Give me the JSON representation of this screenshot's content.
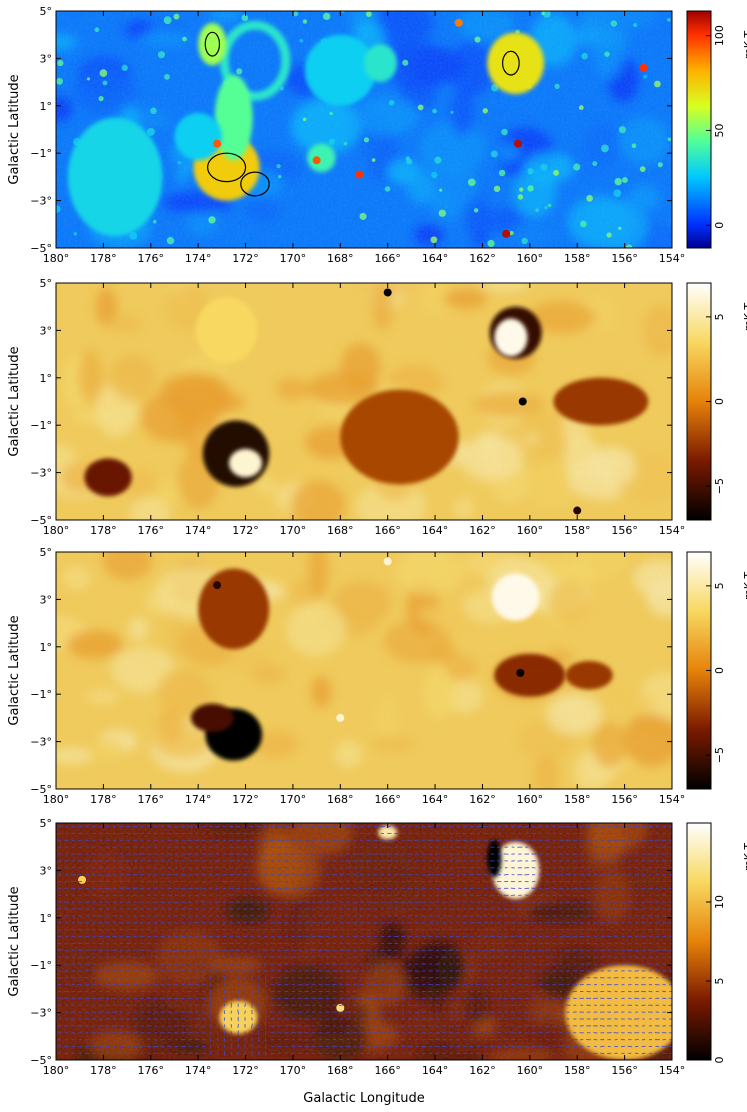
{
  "chart_data": [
    {
      "type": "heatmap",
      "panel": "a",
      "colormap": "jet",
      "xlabel": "",
      "ylabel": "Galactic Latitude",
      "xlim": [
        180,
        154
      ],
      "ylim": [
        -5,
        5
      ],
      "x_ticks": [
        "180°",
        "178°",
        "176°",
        "174°",
        "172°",
        "170°",
        "168°",
        "166°",
        "164°",
        "162°",
        "160°",
        "158°",
        "156°",
        "154°"
      ],
      "y_ticks": [
        "5°",
        "3°",
        "1°",
        "−1°",
        "−3°",
        "−5°"
      ],
      "colorbar": {
        "label": "mK T",
        "label_sub": "B",
        "range": [
          -12,
          113
        ],
        "ticks": [
          "100",
          "50",
          "0"
        ],
        "tick_values": [
          100,
          50,
          0
        ]
      },
      "features": [
        {
          "type": "shell",
          "l": 171.6,
          "b": 2.9,
          "rx": 1.3,
          "ry": 1.5,
          "level": 35
        },
        {
          "type": "blob",
          "l": 172.8,
          "b": -1.6,
          "rx": 1.4,
          "ry": 1.4,
          "level": 75
        },
        {
          "type": "blob",
          "l": 173.4,
          "b": 3.6,
          "rx": 0.6,
          "ry": 0.9,
          "level": 55
        },
        {
          "type": "blob",
          "l": 172.5,
          "b": 0.5,
          "rx": 0.8,
          "ry": 1.8,
          "level": 45
        },
        {
          "type": "blob",
          "l": 160.6,
          "b": 2.8,
          "rx": 1.2,
          "ry": 1.3,
          "level": 70
        },
        {
          "type": "blob",
          "l": 177.5,
          "b": -2.0,
          "rx": 2.0,
          "ry": 2.5,
          "level": 30
        },
        {
          "type": "blob",
          "l": 174.0,
          "b": -0.3,
          "rx": 1.0,
          "ry": 1.0,
          "level": 28
        },
        {
          "type": "blob",
          "l": 168.0,
          "b": 2.5,
          "rx": 1.5,
          "ry": 1.5,
          "level": 28
        },
        {
          "type": "blob",
          "l": 166.3,
          "b": 2.8,
          "rx": 0.7,
          "ry": 0.8,
          "level": 35
        },
        {
          "type": "blob",
          "l": 168.8,
          "b": -1.2,
          "rx": 0.6,
          "ry": 0.6,
          "level": 40
        },
        {
          "type": "point",
          "l": 161.0,
          "b": -4.4,
          "level": 110
        },
        {
          "type": "point",
          "l": 160.5,
          "b": -0.6,
          "level": 110
        },
        {
          "type": "point",
          "l": 167.2,
          "b": -1.9,
          "level": 100
        },
        {
          "type": "point",
          "l": 155.2,
          "b": 2.6,
          "level": 100
        },
        {
          "type": "point",
          "l": 163.0,
          "b": 4.5,
          "level": 90
        },
        {
          "type": "point",
          "l": 173.2,
          "b": -0.6,
          "level": 95
        },
        {
          "type": "point",
          "l": 169.0,
          "b": -1.3,
          "level": 95
        }
      ],
      "contours": [
        {
          "l": 172.8,
          "b": -1.6,
          "rx": 0.8,
          "ry": 0.6
        },
        {
          "l": 171.6,
          "b": -2.3,
          "rx": 0.6,
          "ry": 0.5
        },
        {
          "l": 173.4,
          "b": 3.6,
          "rx": 0.3,
          "ry": 0.5
        },
        {
          "l": 160.8,
          "b": 2.8,
          "rx": 0.35,
          "ry": 0.5
        }
      ]
    },
    {
      "type": "heatmap",
      "panel": "b",
      "colormap": "heat",
      "xlabel": "",
      "ylabel": "Galactic Latitude",
      "xlim": [
        180,
        154
      ],
      "ylim": [
        -5,
        5
      ],
      "x_ticks": [
        "180°",
        "178°",
        "176°",
        "174°",
        "172°",
        "170°",
        "168°",
        "166°",
        "164°",
        "162°",
        "160°",
        "158°",
        "156°",
        "154°"
      ],
      "y_ticks": [
        "5°",
        "3°",
        "1°",
        "−1°",
        "−3°",
        "−5°"
      ],
      "colorbar": {
        "label": "mK T",
        "label_sub": "B",
        "range": [
          -7,
          7
        ],
        "ticks": [
          "5",
          "0",
          "−5"
        ],
        "tick_values": [
          5,
          0,
          -5
        ]
      },
      "features": [
        {
          "type": "blob",
          "l": 172.4,
          "b": -2.2,
          "rx": 1.4,
          "ry": 1.4,
          "level": -6
        },
        {
          "type": "blob",
          "l": 172.0,
          "b": -2.6,
          "rx": 0.7,
          "ry": 0.6,
          "level": 6
        },
        {
          "type": "blob",
          "l": 160.6,
          "b": 2.9,
          "rx": 1.1,
          "ry": 1.1,
          "level": -5.5
        },
        {
          "type": "blob",
          "l": 160.8,
          "b": 2.7,
          "rx": 0.7,
          "ry": 0.8,
          "level": 6.5
        },
        {
          "type": "blob",
          "l": 172.8,
          "b": 3.0,
          "rx": 1.3,
          "ry": 1.4,
          "level": 3.5
        },
        {
          "type": "blob",
          "l": 177.8,
          "b": -3.2,
          "rx": 1.0,
          "ry": 0.8,
          "level": -4
        },
        {
          "type": "blob",
          "l": 165.5,
          "b": -1.5,
          "rx": 2.5,
          "ry": 2.0,
          "level": -2
        },
        {
          "type": "blob",
          "l": 157.0,
          "b": 0.0,
          "rx": 2.0,
          "ry": 1.0,
          "level": -2.5
        },
        {
          "type": "point",
          "l": 166.0,
          "b": 4.6,
          "level": -7
        },
        {
          "type": "point",
          "l": 160.3,
          "b": 0.0,
          "level": -7
        },
        {
          "type": "point",
          "l": 158.0,
          "b": -4.6,
          "level": -6
        }
      ]
    },
    {
      "type": "heatmap",
      "panel": "c",
      "colormap": "heat",
      "xlabel": "",
      "ylabel": "Galactic Latitude",
      "xlim": [
        180,
        154
      ],
      "ylim": [
        -5,
        5
      ],
      "x_ticks": [
        "180°",
        "178°",
        "176°",
        "174°",
        "172°",
        "170°",
        "168°",
        "166°",
        "164°",
        "162°",
        "160°",
        "158°",
        "156°",
        "154°"
      ],
      "y_ticks": [
        "5°",
        "3°",
        "1°",
        "−1°",
        "−3°",
        "−5°"
      ],
      "colorbar": {
        "label": "mK T",
        "label_sub": "B",
        "range": [
          -7,
          7
        ],
        "ticks": [
          "5",
          "0",
          "−5"
        ],
        "tick_values": [
          5,
          0,
          -5
        ]
      },
      "features": [
        {
          "type": "blob",
          "l": 172.5,
          "b": -2.7,
          "rx": 1.2,
          "ry": 1.1,
          "level": -7
        },
        {
          "type": "blob",
          "l": 173.4,
          "b": -2.0,
          "rx": 0.9,
          "ry": 0.6,
          "level": -5
        },
        {
          "type": "blob",
          "l": 160.6,
          "b": 3.1,
          "rx": 1.0,
          "ry": 1.0,
          "level": 6.5
        },
        {
          "type": "blob",
          "l": 172.5,
          "b": 2.6,
          "rx": 1.5,
          "ry": 1.7,
          "level": -2.5
        },
        {
          "type": "blob",
          "l": 160.0,
          "b": -0.2,
          "rx": 1.5,
          "ry": 0.9,
          "level": -3
        },
        {
          "type": "blob",
          "l": 157.5,
          "b": -0.2,
          "rx": 1.0,
          "ry": 0.6,
          "level": -2.5
        },
        {
          "type": "point",
          "l": 173.2,
          "b": 3.6,
          "level": -6
        },
        {
          "type": "point",
          "l": 160.4,
          "b": -0.1,
          "level": -7
        },
        {
          "type": "point",
          "l": 166.0,
          "b": 4.6,
          "level": 6
        },
        {
          "type": "point",
          "l": 168.0,
          "b": -2.0,
          "level": 6
        }
      ]
    },
    {
      "type": "heatmap",
      "panel": "d",
      "colormap": "heat",
      "xlabel": "Galactic Longitude",
      "ylabel": "Galactic Latitude",
      "xlim": [
        180,
        154
      ],
      "ylim": [
        -5,
        5
      ],
      "x_ticks": [
        "180°",
        "178°",
        "176°",
        "174°",
        "172°",
        "170°",
        "168°",
        "166°",
        "164°",
        "162°",
        "160°",
        "158°",
        "156°",
        "154°"
      ],
      "y_ticks": [
        "5°",
        "3°",
        "1°",
        "−1°",
        "−3°",
        "−5°"
      ],
      "colorbar": {
        "label": "mK T",
        "label_sub": "B",
        "range": [
          0,
          15
        ],
        "ticks": [
          "10",
          "5",
          "0"
        ],
        "tick_values": [
          10,
          5,
          0
        ]
      },
      "features": [
        {
          "type": "blob",
          "l": 160.6,
          "b": 3.0,
          "rx": 1.0,
          "ry": 1.2,
          "level": 14
        },
        {
          "type": "blob",
          "l": 172.3,
          "b": -3.2,
          "rx": 0.8,
          "ry": 0.7,
          "level": 11
        },
        {
          "type": "blob",
          "l": 166.0,
          "b": 4.6,
          "rx": 0.4,
          "ry": 0.3,
          "level": 13
        },
        {
          "type": "blob",
          "l": 156.0,
          "b": -3.0,
          "rx": 2.5,
          "ry": 2.0,
          "level": 10
        },
        {
          "type": "blob",
          "l": 161.5,
          "b": 3.5,
          "rx": 0.3,
          "ry": 0.8,
          "level": 0
        },
        {
          "type": "point",
          "l": 178.9,
          "b": 2.6,
          "level": 11
        },
        {
          "type": "point",
          "l": 168.0,
          "b": -2.8,
          "level": 12
        }
      ],
      "vectors": true
    }
  ]
}
